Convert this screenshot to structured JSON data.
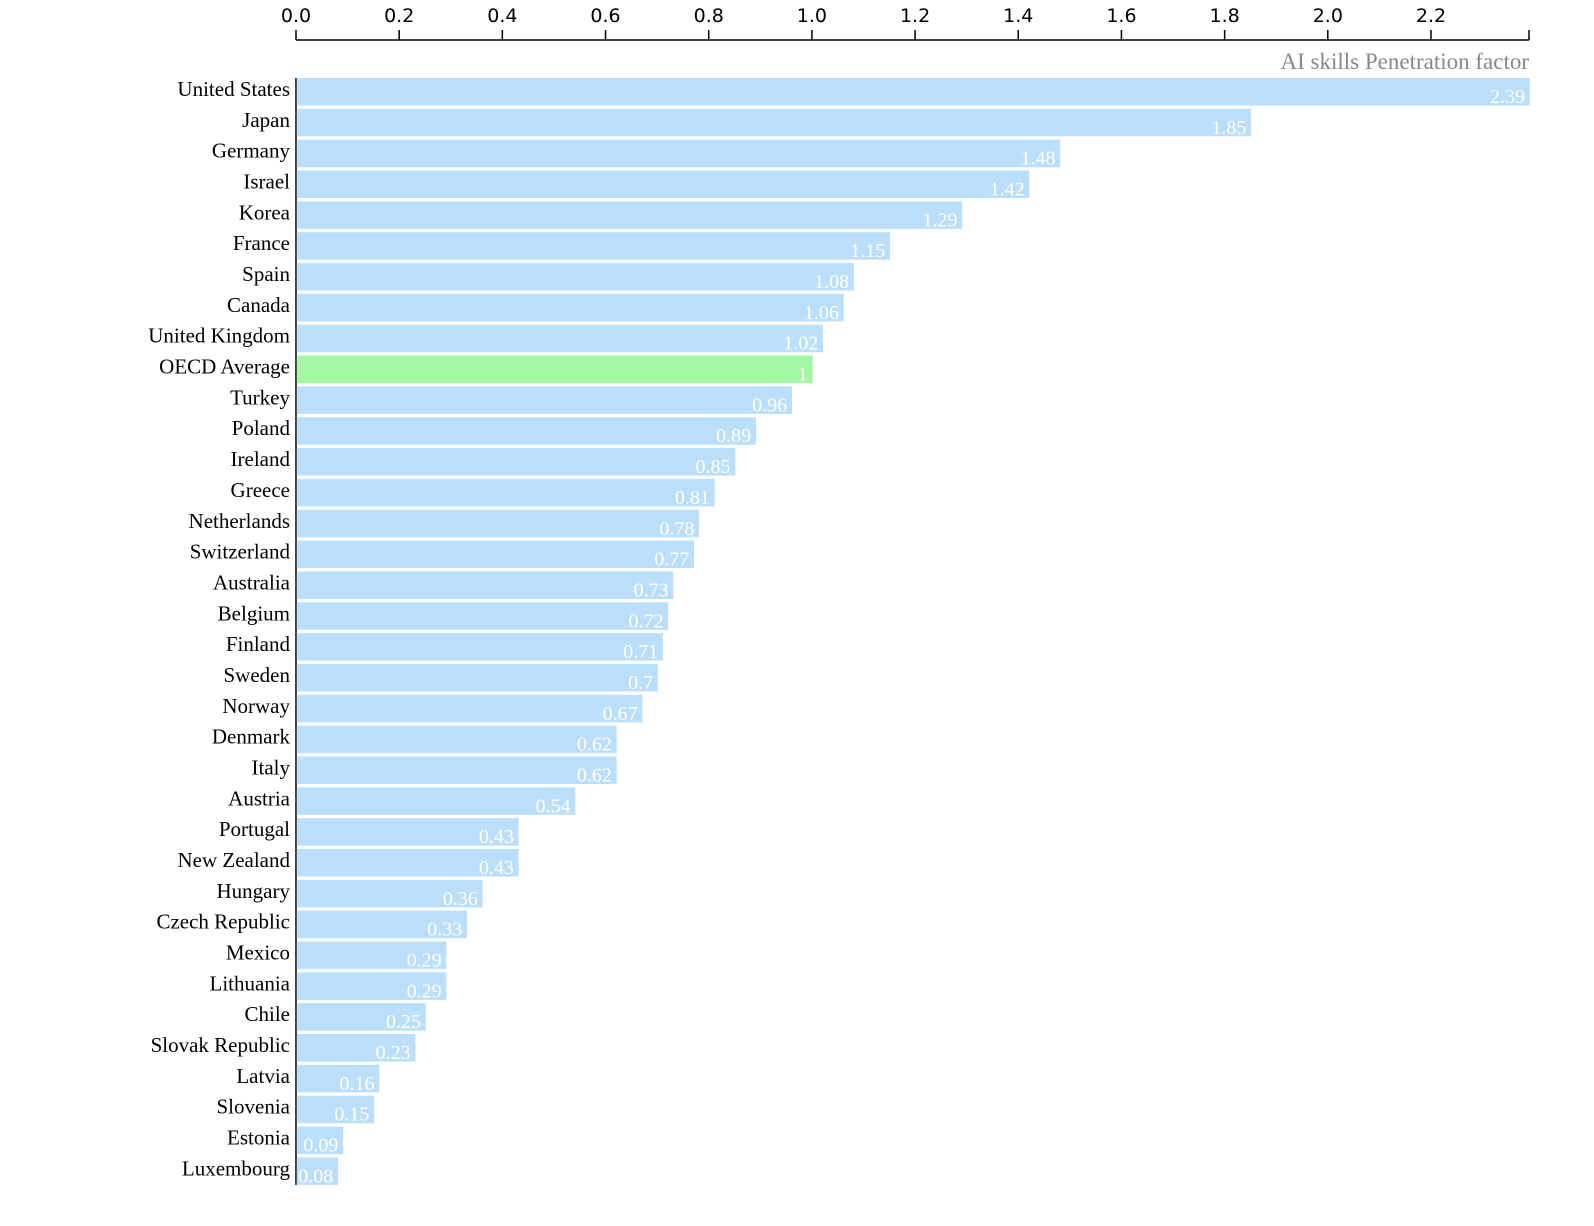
{
  "chart_data": {
    "type": "bar",
    "orientation": "horizontal",
    "xlabel": "AI skills Penetration factor",
    "xlim": [
      0,
      2.39
    ],
    "x_ticks": [
      "0.0",
      "0.2",
      "0.4",
      "0.6",
      "0.8",
      "1.0",
      "1.2",
      "1.4",
      "1.6",
      "1.8",
      "2.0",
      "2.2"
    ],
    "x_tick_values": [
      0,
      0.2,
      0.4,
      0.6,
      0.8,
      1.0,
      1.2,
      1.4,
      1.6,
      1.8,
      2.0,
      2.2
    ],
    "x_axis_position": "top",
    "grid": false,
    "colors": {
      "bar": "#bbdefb",
      "highlight": "#a5f7a5",
      "value_label": "#ffffff"
    },
    "categories": [
      "United States",
      "Japan",
      "Germany",
      "Israel",
      "Korea",
      "France",
      "Spain",
      "Canada",
      "United Kingdom",
      "OECD Average",
      "Turkey",
      "Poland",
      "Ireland",
      "Greece",
      "Netherlands",
      "Switzerland",
      "Australia",
      "Belgium",
      "Finland",
      "Sweden",
      "Norway",
      "Denmark",
      "Italy",
      "Austria",
      "Portugal",
      "New Zealand",
      "Hungary",
      "Czech Republic",
      "Mexico",
      "Lithuania",
      "Chile",
      "Slovak Republic",
      "Latvia",
      "Slovenia",
      "Estonia",
      "Luxembourg"
    ],
    "values": [
      2.39,
      1.85,
      1.48,
      1.42,
      1.29,
      1.15,
      1.08,
      1.06,
      1.02,
      1,
      0.96,
      0.89,
      0.85,
      0.81,
      0.78,
      0.77,
      0.73,
      0.72,
      0.71,
      0.7,
      0.67,
      0.62,
      0.62,
      0.54,
      0.43,
      0.43,
      0.36,
      0.33,
      0.29,
      0.29,
      0.25,
      0.23,
      0.16,
      0.15,
      0.09,
      0.08
    ],
    "value_labels": [
      "2.39",
      "1.85",
      "1.48",
      "1.42",
      "1.29",
      "1.15",
      "1.08",
      "1.06",
      "1.02",
      "1",
      "0.96",
      "0.89",
      "0.85",
      "0.81",
      "0.78",
      "0.77",
      "0.73",
      "0.72",
      "0.71",
      "0.7",
      "0.67",
      "0.62",
      "0.62",
      "0.54",
      "0.43",
      "0.43",
      "0.36",
      "0.33",
      "0.29",
      "0.29",
      "0.25",
      "0.23",
      "0.16",
      "0.15",
      "0.09",
      "0.08"
    ],
    "highlighted_category": "OECD Average"
  }
}
